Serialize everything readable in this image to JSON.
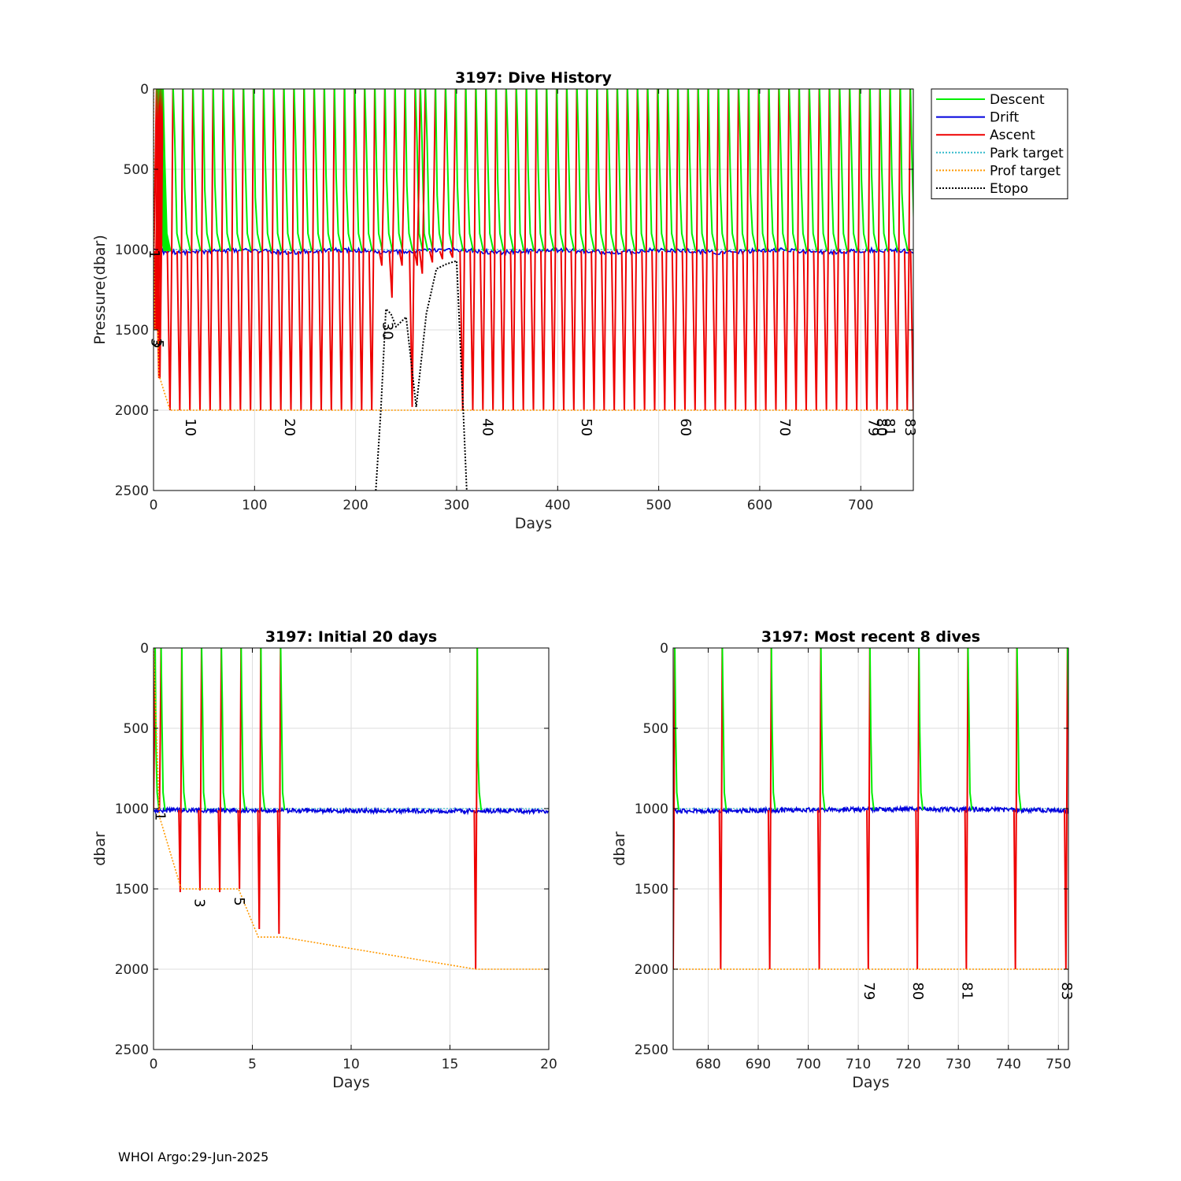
{
  "footer": "WHOI Argo:29-Jun-2025",
  "colors": {
    "descent": "#00ee00",
    "drift": "#0000dd",
    "ascent": "#ee0000",
    "park_target": "#33bbcc",
    "prof_target": "#ff9900",
    "etopo": "#000000",
    "grid": "#dedede"
  },
  "chart_data": [
    {
      "id": "main",
      "type": "line",
      "title": "3197: Dive History",
      "xlabel": "Days",
      "ylabel": "Pressure(dbar)",
      "xlim": [
        0,
        752
      ],
      "ylim": [
        0,
        2500
      ],
      "y_reversed": true,
      "grid": true,
      "x_ticks": [
        0,
        100,
        200,
        300,
        400,
        500,
        600,
        700
      ],
      "y_ticks": [
        0,
        500,
        1000,
        1500,
        2000,
        2500
      ],
      "legend": {
        "position": "outside-top-right",
        "entries": [
          "Descent",
          "Drift",
          "Ascent",
          "Park target",
          "Prof target",
          "Etopo"
        ]
      },
      "series_notes": {
        "descent": "surface to ~1000 dbar each cycle",
        "drift": "park at ~1000 dbar between cycles",
        "ascent": "profile depth to surface each cycle"
      },
      "cycle_days": [
        0,
        0.3,
        1.3,
        2.3,
        3.3,
        4.3,
        5.3,
        6.3,
        16.3,
        26,
        36,
        46,
        56,
        66,
        76,
        86,
        96,
        106,
        116,
        126,
        136,
        146,
        156,
        166,
        176,
        186,
        196,
        206,
        216,
        226,
        236,
        246,
        256,
        261,
        266,
        276,
        286,
        296,
        306,
        316,
        326,
        336,
        346,
        356,
        366,
        376,
        386,
        396,
        406,
        416,
        426,
        436,
        446,
        456,
        466,
        476,
        486,
        496,
        506,
        516,
        526,
        536,
        546,
        556,
        566,
        576,
        586,
        596,
        606,
        616,
        626,
        636,
        646,
        656,
        666,
        676,
        686,
        696,
        706,
        716,
        726,
        736,
        746,
        752
      ],
      "profile_depths": [
        1000,
        1000,
        1500,
        1500,
        1500,
        1500,
        1800,
        1800,
        2000,
        2000,
        2000,
        2000,
        2000,
        2000,
        2000,
        2000,
        2000,
        2000,
        2000,
        2000,
        2000,
        2000,
        2000,
        2000,
        2000,
        2000,
        2000,
        2000,
        2000,
        1100,
        1300,
        1100,
        1980,
        1100,
        1150,
        1080,
        1060,
        1050,
        2000,
        2000,
        2000,
        2000,
        2000,
        2000,
        2000,
        2000,
        2000,
        2000,
        2000,
        2000,
        2000,
        2000,
        2000,
        2000,
        2000,
        2000,
        2000,
        2000,
        2000,
        2000,
        2000,
        2000,
        2000,
        2000,
        2000,
        2000,
        2000,
        2000,
        2000,
        2000,
        2000,
        2000,
        2000,
        2000,
        2000,
        2000,
        2000,
        2000,
        2000,
        2000,
        2000,
        2000,
        2000,
        2000
      ],
      "drift_pressure": 1010,
      "park_target": 1000,
      "prof_target": [
        [
          0,
          0
        ],
        [
          0.3,
          1000
        ],
        [
          1.3,
          1500
        ],
        [
          4.3,
          1500
        ],
        [
          5.3,
          1800
        ],
        [
          6.3,
          1800
        ],
        [
          16.3,
          2000
        ],
        [
          752,
          2000
        ]
      ],
      "etopo": [
        [
          220,
          2500
        ],
        [
          225,
          2000
        ],
        [
          230,
          1370
        ],
        [
          235,
          1400
        ],
        [
          240,
          1480
        ],
        [
          250,
          1420
        ],
        [
          260,
          1980
        ],
        [
          270,
          1400
        ],
        [
          280,
          1120
        ],
        [
          290,
          1090
        ],
        [
          300,
          1070
        ],
        [
          310,
          2500
        ]
      ],
      "cycle_labels": [
        {
          "label": "1",
          "x": 0,
          "y": 1000
        },
        {
          "label": "3",
          "x": 2,
          "y": 1550
        },
        {
          "label": "5",
          "x": 4,
          "y": 1560
        },
        {
          "label": "10",
          "x": 36,
          "y": 2050
        },
        {
          "label": "20",
          "x": 134,
          "y": 2050
        },
        {
          "label": "30",
          "x": 231,
          "y": 1450
        },
        {
          "label": "40",
          "x": 330,
          "y": 2050
        },
        {
          "label": "50",
          "x": 428,
          "y": 2050
        },
        {
          "label": "60",
          "x": 526,
          "y": 2050
        },
        {
          "label": "70",
          "x": 624,
          "y": 2050
        },
        {
          "label": "79",
          "x": 712,
          "y": 2050
        },
        {
          "label": "80",
          "x": 720,
          "y": 2050
        },
        {
          "label": "81",
          "x": 728,
          "y": 2050
        },
        {
          "label": "83",
          "x": 748,
          "y": 2050
        }
      ]
    },
    {
      "id": "initial",
      "type": "line",
      "title": "3197: Initial 20 days",
      "xlabel": "Days",
      "ylabel": "dbar",
      "xlim": [
        0,
        20
      ],
      "ylim": [
        0,
        2500
      ],
      "y_reversed": true,
      "grid": true,
      "x_ticks": [
        0,
        5,
        10,
        15,
        20
      ],
      "y_ticks": [
        0,
        500,
        1000,
        1500,
        2000,
        2500
      ],
      "cycle_days": [
        0,
        0.3,
        1.35,
        2.35,
        3.35,
        4.35,
        5.35,
        6.35,
        16.3
      ],
      "profile_depths": [
        1000,
        1000,
        1520,
        1510,
        1520,
        1500,
        1750,
        1780,
        2000
      ],
      "drift_pressure": 1010,
      "park_target": 1000,
      "prof_target": [
        [
          0,
          0
        ],
        [
          0.3,
          1050
        ],
        [
          1.4,
          1500
        ],
        [
          4.3,
          1500
        ],
        [
          5.3,
          1800
        ],
        [
          6.5,
          1800
        ],
        [
          16.3,
          2000
        ],
        [
          20,
          2000
        ]
      ],
      "cycle_labels": [
        {
          "label": "1",
          "x": 0.3,
          "y": 1020
        },
        {
          "label": "3",
          "x": 2.3,
          "y": 1560
        },
        {
          "label": "5",
          "x": 4.3,
          "y": 1550
        }
      ]
    },
    {
      "id": "recent",
      "type": "line",
      "title": "3197: Most recent 8 dives",
      "xlabel": "Days",
      "ylabel": "dbar",
      "xlim": [
        673,
        752
      ],
      "ylim": [
        0,
        2500
      ],
      "y_reversed": true,
      "grid": true,
      "x_ticks": [
        680,
        690,
        700,
        710,
        720,
        730,
        740,
        750
      ],
      "y_ticks": [
        0,
        500,
        1000,
        1500,
        2000,
        2500
      ],
      "cycle_days": [
        673,
        682.5,
        692.3,
        702.2,
        712,
        721.8,
        731.6,
        741.4,
        751.5
      ],
      "profile_depths": [
        2000,
        2000,
        2000,
        2000,
        2000,
        2000,
        2000,
        2000,
        2000
      ],
      "drift_pressure": 1010,
      "park_target": 1000,
      "prof_target": [
        [
          673,
          2000
        ],
        [
          752,
          2000
        ]
      ],
      "cycle_labels": [
        {
          "label": "79",
          "x": 712,
          "y": 2080
        },
        {
          "label": "80",
          "x": 721.8,
          "y": 2080
        },
        {
          "label": "81",
          "x": 731.6,
          "y": 2080
        },
        {
          "label": "83",
          "x": 751.5,
          "y": 2080
        }
      ]
    }
  ]
}
